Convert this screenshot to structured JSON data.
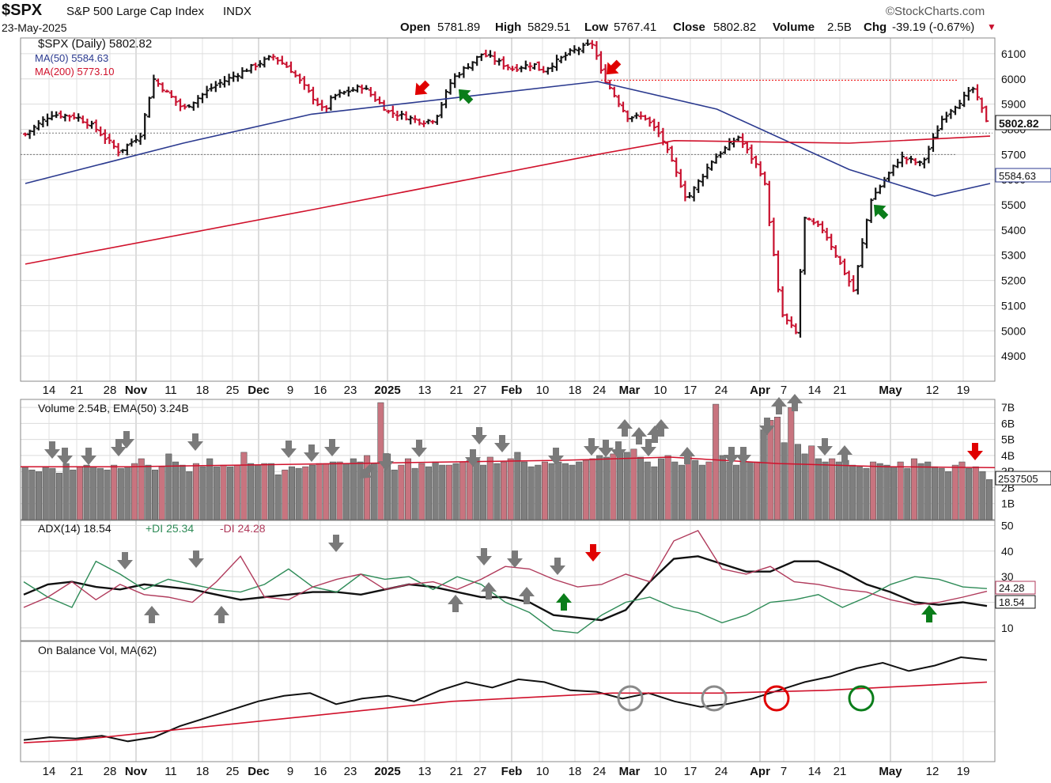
{
  "header": {
    "symbol": "$SPX",
    "name": "S&P 500 Large Cap Index",
    "exchange": "INDX",
    "brand": "©StockCharts.com",
    "date": "23-May-2025",
    "open_label": "Open",
    "open": "5781.89",
    "high_label": "High",
    "high": "5829.51",
    "low_label": "Low",
    "low": "5767.41",
    "close_label": "Close",
    "close": "5802.82",
    "volume_label": "Volume",
    "volume": "2.5B",
    "chg_label": "Chg",
    "chg": "-39.19 (-0.67%)"
  },
  "legend": {
    "price": "$SPX (Daily) 5802.82",
    "ma50": "MA(50) 5584.63",
    "ma200": "MA(200) 5773.10",
    "volume": "Volume 2.54B, EMA(50) 3.24B",
    "adx": "ADX(14) 18.54",
    "pdi": "+DI 25.34",
    "mdi": "-DI 24.28",
    "obv": "On Balance Vol, MA(62)"
  },
  "badges": {
    "close": "5802.82",
    "ma50": "5584.63",
    "volume": "2537505",
    "mdi": "24.28",
    "adx": "18.54"
  },
  "colors": {
    "up": "#111111",
    "down": "#c8102e",
    "ma50": "#2b3a8f",
    "ma200": "#d0112b",
    "vol_up": "#7f7f7f",
    "vol_down": "#c8747f",
    "pdi": "#2e8b57",
    "mdi": "#b03a5b",
    "arrow_gray": "#7a7a7a",
    "arrow_red": "#e00000",
    "arrow_green": "#0a7d1a",
    "grid": "#dcdcdc"
  },
  "x_axis_labels": [
    "14",
    "21",
    "28",
    "Nov",
    "11",
    "18",
    "25",
    "Dec",
    "9",
    "16",
    "23",
    "2025",
    "13",
    "21",
    "27",
    "Feb",
    "10",
    "18",
    "24",
    "Mar",
    "10",
    "17",
    "24",
    "Apr",
    "7",
    "14",
    "21",
    "May",
    "12",
    "19"
  ],
  "chart_data": [
    {
      "type": "line",
      "title": "$SPX (Daily) 5802.82",
      "x_start": "2024-10-09",
      "x_end": "2025-05-23",
      "y_ticks": [
        4900,
        5000,
        5100,
        5200,
        5300,
        5400,
        5500,
        5600,
        5700,
        5800,
        5900,
        6000,
        6100
      ],
      "ylim": [
        4800,
        6150
      ],
      "series": [
        {
          "name": "$SPX",
          "x": [
            "2024-10-09",
            "2024-10-15",
            "2024-10-21",
            "2024-10-25",
            "2024-10-31",
            "2024-11-05",
            "2024-11-08",
            "2024-11-15",
            "2024-11-22",
            "2024-11-29",
            "2024-12-06",
            "2024-12-10",
            "2024-12-18",
            "2024-12-20",
            "2024-12-27",
            "2025-01-02",
            "2025-01-10",
            "2025-01-13",
            "2025-01-17",
            "2025-01-24",
            "2025-01-31",
            "2025-02-05",
            "2025-02-07",
            "2025-02-14",
            "2025-02-19",
            "2025-02-21",
            "2025-02-27",
            "2025-03-03",
            "2025-03-07",
            "2025-03-13",
            "2025-03-19",
            "2025-03-25",
            "2025-03-31",
            "2025-04-04",
            "2025-04-08",
            "2025-04-09",
            "2025-04-14",
            "2025-04-21",
            "2025-04-25",
            "2025-05-02",
            "2025-05-07",
            "2025-05-12",
            "2025-05-19",
            "2025-05-23"
          ],
          "values": [
            5780,
            5860,
            5850,
            5810,
            5710,
            5780,
            6000,
            5880,
            5970,
            6030,
            6090,
            6040,
            5870,
            5930,
            5970,
            5870,
            5830,
            5840,
            6000,
            6100,
            6040,
            6060,
            6030,
            6110,
            6140,
            6020,
            5850,
            5850,
            5770,
            5520,
            5680,
            5770,
            5610,
            5070,
            4980,
            5450,
            5400,
            5160,
            5520,
            5690,
            5660,
            5850,
            5960,
            5802
          ]
        }
      ]
    },
    {
      "type": "line",
      "title": "",
      "series": [
        {
          "name": "MA(50)",
          "x": [
            "2024-10-09",
            "2024-11-15",
            "2024-12-15",
            "2025-01-15",
            "2025-02-20",
            "2025-03-20",
            "2025-04-20",
            "2025-05-10",
            "2025-05-23"
          ],
          "values": [
            5585,
            5745,
            5860,
            5920,
            5990,
            5880,
            5640,
            5535,
            5585
          ]
        },
        {
          "name": "MA(200)",
          "x": [
            "2024-10-09",
            "2024-12-15",
            "2025-02-20",
            "2025-03-10",
            "2025-04-20",
            "2025-05-23"
          ],
          "values": [
            5265,
            5480,
            5700,
            5755,
            5745,
            5773
          ]
        }
      ]
    },
    {
      "type": "bar",
      "title": "Volume 2.54B, EMA(50) 3.24B",
      "y_ticks": [
        "1B",
        "2B",
        "3B",
        "4B",
        "5B",
        "6B",
        "7B"
      ],
      "ylim": [
        0,
        7.5
      ],
      "values": [
        3.3,
        3.1,
        3.0,
        3.3,
        3.2,
        2.9,
        3.5,
        3.1,
        3.3,
        3.4,
        3.3,
        3.2,
        3.1,
        3.4,
        3.2,
        3.3,
        3.5,
        3.8,
        3.4,
        3.1,
        3.3,
        4.1,
        3.6,
        3.4,
        3.0,
        3.5,
        3.3,
        3.8,
        3.3,
        3.4,
        3.3,
        3.4,
        4.2,
        3.5,
        3.4,
        3.5,
        3.5,
        2.8,
        3.1,
        3.3,
        3.2,
        3.3,
        3.4,
        3.5,
        3.5,
        3.6,
        3.6,
        3.5,
        3.8,
        3.6,
        4.0,
        3.5,
        7.3,
        4.1,
        3.1,
        3.4,
        3.8,
        3.2,
        3.5,
        3.3,
        3.6,
        3.4,
        3.4,
        3.5,
        3.6,
        3.7,
        3.8,
        3.4,
        3.9,
        3.5,
        3.6,
        3.8,
        4.2,
        3.6,
        3.3,
        3.4,
        3.6,
        3.5,
        3.6,
        3.5,
        3.4,
        3.6,
        3.7,
        3.8,
        4.0,
        3.9,
        4.1,
        4.3,
        4.2,
        4.4,
        3.9,
        3.6,
        3.3,
        3.8,
        4.0,
        3.6,
        3.4,
        4.0,
        3.7,
        3.4,
        3.6,
        7.2,
        4.0,
        3.6,
        3.4,
        4.1,
        3.6,
        3.6,
        5.6,
        6.2,
        6.4,
        4.8,
        7.0,
        4.7,
        4.1,
        4.6,
        3.8,
        3.6,
        3.8,
        3.6,
        3.7,
        3.4,
        3.3,
        3.2,
        3.6,
        3.5,
        3.4,
        3.3,
        3.6,
        3.2,
        3.8,
        3.5,
        3.6,
        3.3,
        3.2,
        3.0,
        3.4,
        3.6,
        3.2,
        3.3,
        3.0,
        2.5
      ],
      "series": [
        {
          "name": "EMA(50)",
          "values": [
            3.3,
            3.3,
            3.4,
            3.5,
            3.6,
            3.7,
            3.9,
            3.5,
            3.3,
            3.24
          ]
        }
      ]
    },
    {
      "type": "line",
      "title": "ADX(14) 18.54",
      "y_ticks": [
        10,
        20,
        30,
        40,
        50
      ],
      "ylim": [
        5,
        52
      ],
      "series": [
        {
          "name": "ADX(14)",
          "values": [
            23,
            27,
            28,
            26,
            25,
            27,
            26,
            25,
            23,
            21,
            22,
            23,
            24,
            24,
            23,
            25,
            27,
            26,
            24,
            22,
            22,
            20,
            15,
            14,
            13,
            17,
            28,
            37,
            38,
            35,
            32,
            32,
            36,
            36,
            32,
            27,
            24,
            20,
            19,
            20,
            18.54
          ]
        },
        {
          "name": "+DI",
          "values": [
            28,
            22,
            18,
            36,
            31,
            25,
            29,
            27,
            25,
            24,
            27,
            33,
            26,
            24,
            31,
            29,
            30,
            25,
            30,
            27,
            20,
            16,
            9,
            8,
            15,
            20,
            22,
            18,
            16,
            12,
            15,
            20,
            21,
            23,
            18,
            22,
            27,
            30,
            29,
            26,
            25.34
          ]
        },
        {
          "name": "-DI",
          "values": [
            18,
            22,
            28,
            21,
            27,
            23,
            22,
            20,
            28,
            38,
            22,
            21,
            26,
            29,
            31,
            25,
            27,
            28,
            25,
            29,
            34,
            33,
            29,
            26,
            27,
            31,
            28,
            44,
            48,
            33,
            31,
            34,
            28,
            27,
            25,
            24,
            21,
            19,
            20,
            22,
            24.28
          ]
        }
      ]
    },
    {
      "type": "line",
      "title": "On Balance Vol, MA(62)",
      "series": [
        {
          "name": "On Balance Vol",
          "values": [
            10,
            12,
            11,
            13,
            9,
            12,
            20,
            26,
            32,
            38,
            42,
            44,
            36,
            40,
            42,
            38,
            46,
            52,
            48,
            54,
            52,
            46,
            45,
            40,
            44,
            38,
            34,
            36,
            40,
            46,
            52,
            56,
            62,
            66,
            60,
            64,
            70,
            68
          ]
        },
        {
          "name": "MA(62)",
          "values": [
            8,
            10,
            14,
            18,
            22,
            26,
            30,
            34,
            38,
            40,
            42,
            44,
            44,
            44,
            45,
            46,
            48,
            50,
            52
          ]
        }
      ]
    }
  ]
}
